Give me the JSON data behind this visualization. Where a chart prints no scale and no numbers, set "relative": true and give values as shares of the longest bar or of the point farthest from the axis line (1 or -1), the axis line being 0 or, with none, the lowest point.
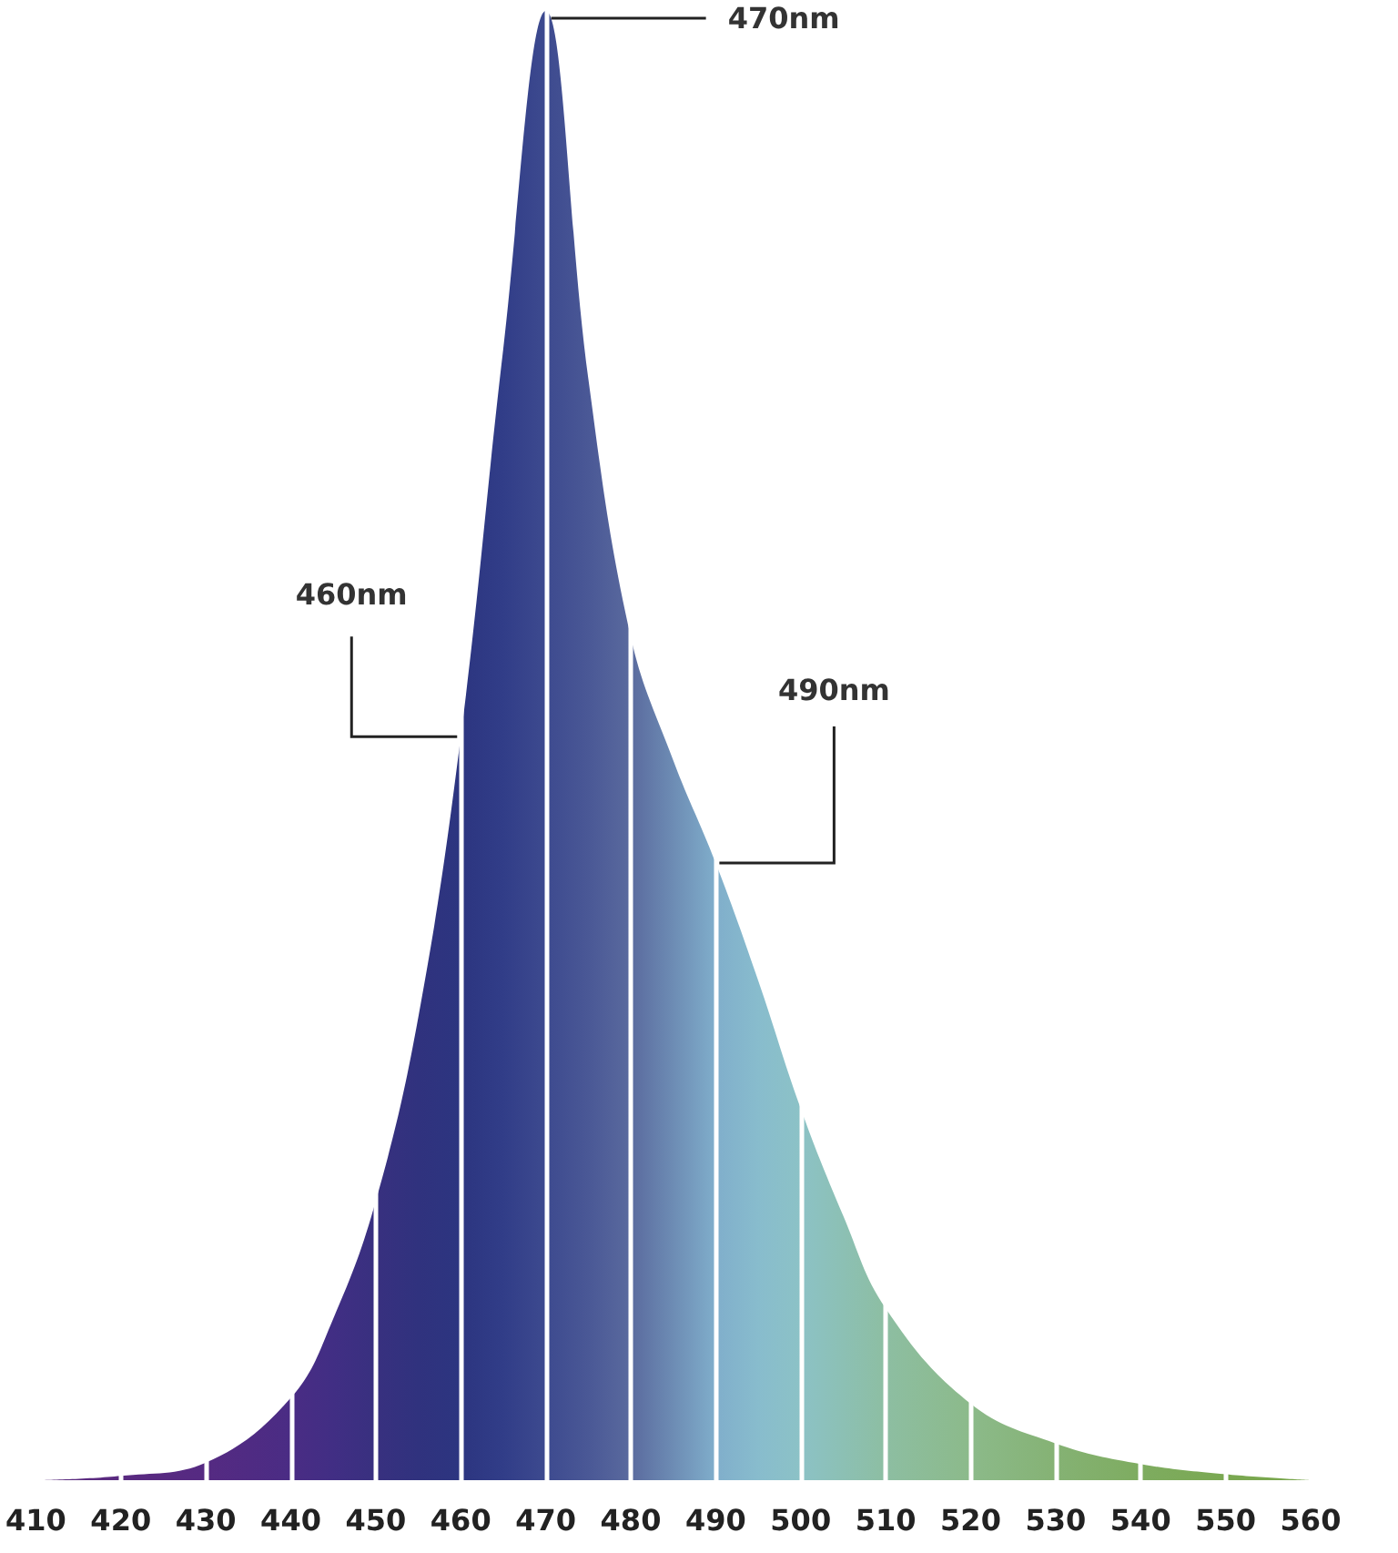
{
  "chart_data": {
    "type": "area",
    "relative": true,
    "x": [
      410,
      420,
      430,
      440,
      445,
      450,
      455,
      460,
      465,
      470,
      475,
      480,
      485,
      490,
      495,
      500,
      505,
      510,
      520,
      530,
      540,
      550,
      560
    ],
    "series": [
      {
        "values": [
          0,
          0.003,
          0.012,
          0.056,
          0.11,
          0.19,
          0.315,
          0.506,
          0.77,
          1,
          0.75,
          0.574,
          0.49,
          0.42,
          0.34,
          0.253,
          0.18,
          0.117,
          0.052,
          0.025,
          0.011,
          0.004,
          0
        ],
        "colors": [
          "#5a2a7e",
          "#5a2a80",
          "#552a82",
          "#4a2c84",
          "#412e84",
          "#38307f",
          "#30327e",
          "#2c3580",
          "#313d88",
          "#3d4a8f",
          "#4a5896",
          "#5a6a9e",
          "#6d8cb4",
          "#80aecb",
          "#88bccd",
          "#8cc2c6",
          "#8cc0b4",
          "#8dbea2",
          "#8cba8a",
          "#85b274",
          "#7eac60",
          "#7aa852",
          "#78a64a"
        ]
      }
    ],
    "xlim": [
      410,
      560
    ],
    "xticks": [
      410,
      420,
      430,
      440,
      450,
      460,
      470,
      480,
      490,
      500,
      510,
      520,
      530,
      540,
      550,
      560
    ],
    "grid": "x",
    "annotations": [
      {
        "text": "470nm",
        "x": 470,
        "y": 1
      },
      {
        "text": "460nm",
        "x": 460,
        "y": 0.506
      },
      {
        "text": "490nm",
        "x": 490,
        "y": 0.42
      }
    ]
  }
}
